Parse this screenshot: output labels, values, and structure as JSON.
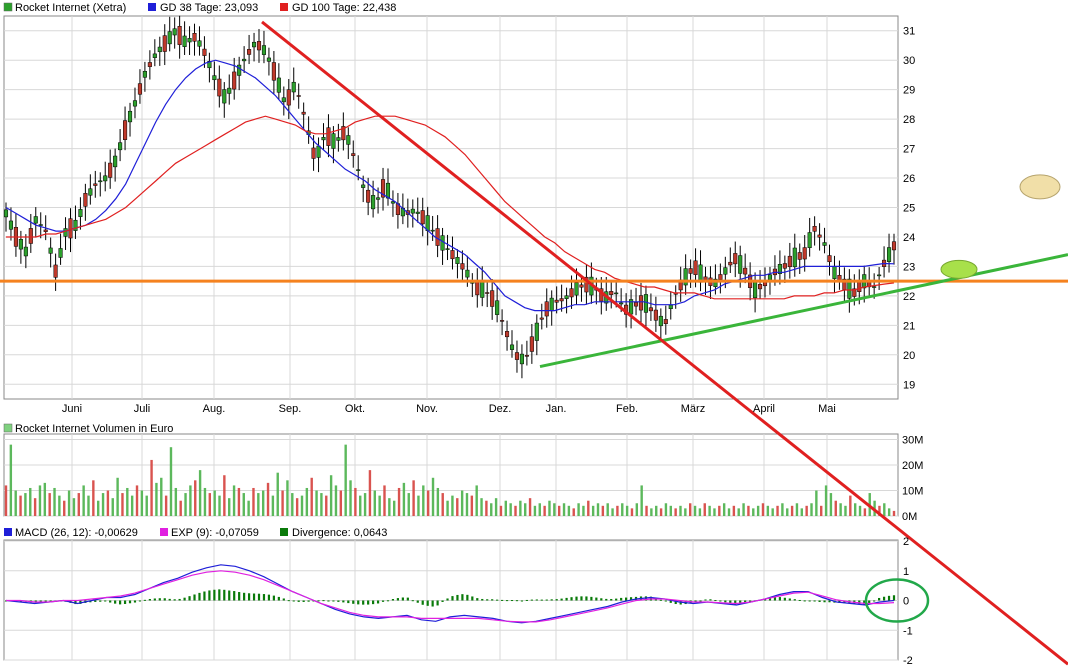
{
  "legend": {
    "price": {
      "label": "Rocket Internet (Xetra)",
      "color": "#2ca02c"
    },
    "gd38": {
      "label": "GD 38 Tage: 23,093",
      "color": "#1f1fd8"
    },
    "gd100": {
      "label": "GD 100 Tage: 22,438",
      "color": "#e02020"
    },
    "volume": {
      "label": "Rocket Internet Volumen in Euro",
      "color": "#7fd17f"
    },
    "macd": {
      "label": "MACD (26, 12): -0,00629",
      "color": "#1f1fd8"
    },
    "exp": {
      "label": "EXP (9): -0,07059",
      "color": "#e020e0"
    },
    "divergence": {
      "label": "Divergence: 0,0643",
      "color": "#0a7a0a"
    }
  },
  "chart_data": [
    {
      "type": "line",
      "title": "Rocket Internet (Xetra)",
      "x_ticks": [
        "Juni",
        "Juli",
        "Aug.",
        "Sep.",
        "Okt.",
        "Nov.",
        "Dez.",
        "Jan.",
        "Feb.",
        "März",
        "April",
        "Mai"
      ],
      "y_ticks": [
        "19",
        "20",
        "21",
        "22",
        "23",
        "24",
        "25",
        "26",
        "27",
        "28",
        "29",
        "30",
        "31"
      ],
      "ylim": [
        18.5,
        31.5
      ],
      "price_series": {
        "name": "Rocket Internet (Xetra)",
        "x": [
          0,
          10,
          20,
          30,
          40,
          50,
          60,
          70,
          80,
          90,
          100,
          110,
          120,
          130,
          140,
          150,
          160,
          170,
          180,
          190,
          200,
          210,
          220,
          230,
          240,
          250,
          260,
          270,
          280,
          290,
          300,
          310,
          320,
          330,
          340,
          350,
          360,
          370,
          380,
          390,
          400,
          410,
          420,
          430,
          440,
          450,
          460,
          470,
          480,
          490,
          500,
          510,
          520,
          530,
          540,
          550,
          560,
          570,
          580,
          590,
          600,
          610,
          620,
          630,
          640,
          650,
          660,
          670,
          680,
          690,
          700,
          710,
          720,
          730,
          740,
          750,
          760,
          770,
          780,
          790,
          800,
          810,
          820,
          830,
          840,
          850,
          860,
          870,
          880,
          890
        ],
        "values": [
          24.8,
          24.0,
          23.5,
          24.6,
          24.2,
          22.8,
          24.2,
          24.4,
          25.3,
          25.8,
          26.0,
          26.6,
          27.7,
          28.6,
          29.6,
          30.2,
          30.6,
          31.0,
          30.6,
          30.8,
          30.2,
          29.3,
          28.7,
          29.4,
          30.1,
          30.6,
          30.3,
          29.5,
          28.5,
          29.2,
          28.0,
          26.6,
          27.5,
          27.2,
          27.6,
          26.6,
          25.5,
          25.1,
          25.8,
          25.0,
          24.8,
          24.9,
          24.6,
          24.1,
          23.7,
          23.3,
          22.9,
          22.3,
          22.2,
          21.8,
          20.9,
          20.0,
          19.8,
          20.6,
          21.5,
          21.8,
          21.9,
          22.2,
          22.4,
          22.3,
          21.9,
          22.2,
          21.5,
          21.7,
          21.8,
          21.4,
          21.0,
          22.0,
          22.6,
          23.0,
          22.6,
          22.4,
          22.8,
          23.3,
          22.9,
          22.2,
          22.4,
          22.8,
          23.0,
          23.3,
          23.4,
          24.3,
          23.8,
          22.8,
          22.4,
          22.1,
          22.5,
          22.3,
          23.1,
          23.7
        ]
      },
      "gd38_values": [
        25.0,
        24.8,
        24.6,
        24.4,
        24.3,
        24.2,
        24.2,
        24.3,
        24.4,
        24.6,
        24.9,
        25.3,
        25.8,
        26.5,
        27.2,
        27.9,
        28.5,
        29.0,
        29.4,
        29.7,
        29.9,
        30.0,
        29.9,
        29.8,
        29.6,
        29.4,
        29.1,
        28.8,
        28.4,
        28.0,
        27.6,
        27.2,
        26.9,
        26.6,
        26.3,
        26.1,
        25.9,
        25.6,
        25.4,
        25.2,
        24.9,
        24.6,
        24.3,
        24.0,
        23.8,
        23.6,
        23.4,
        23.1,
        22.8,
        22.4,
        22.0,
        21.8,
        21.6,
        21.5,
        21.5,
        21.5,
        21.6,
        21.7,
        21.7,
        21.8,
        21.8,
        21.8,
        21.8,
        21.8,
        21.8,
        21.7,
        21.7,
        21.7,
        21.8,
        22.0,
        22.1,
        22.2,
        22.4,
        22.5,
        22.6,
        22.7,
        22.7,
        22.8,
        22.8,
        22.9,
        23.0,
        23.0,
        23.0,
        23.0,
        23.0,
        23.0,
        23.0,
        23.05,
        23.1,
        23.09
      ],
      "gd100_values": [
        24.0,
        24.0,
        24.0,
        24.0,
        24.1,
        24.1,
        24.2,
        24.3,
        24.4,
        24.5,
        24.6,
        24.8,
        25.0,
        25.3,
        25.6,
        25.9,
        26.2,
        26.5,
        26.7,
        26.9,
        27.1,
        27.3,
        27.5,
        27.7,
        27.9,
        28.0,
        28.1,
        28.0,
        27.9,
        27.8,
        27.6,
        27.5,
        27.5,
        27.6,
        27.7,
        27.9,
        28.0,
        28.1,
        28.1,
        28.1,
        28.0,
        27.9,
        27.8,
        27.6,
        27.4,
        27.1,
        26.8,
        26.4,
        26.0,
        25.6,
        25.2,
        24.9,
        24.6,
        24.3,
        24.0,
        23.8,
        23.5,
        23.3,
        23.1,
        22.9,
        22.8,
        22.6,
        22.5,
        22.4,
        22.3,
        22.3,
        22.2,
        22.1,
        22.1,
        22.1,
        22.0,
        21.9,
        21.9,
        21.9,
        21.9,
        21.9,
        21.9,
        21.9,
        21.9,
        22.0,
        22.0,
        22.0,
        22.1,
        22.1,
        22.2,
        22.2,
        22.3,
        22.35,
        22.4,
        22.44
      ],
      "annotations": {
        "support_level": 22.5,
        "downtrend_line": {
          "from": [
            262,
            31.3
          ],
          "to": [
            1068,
            9.5
          ],
          "color": "#e02020"
        },
        "uptrend_line": {
          "from": [
            540,
            19.6
          ],
          "to": [
            1068,
            23.4
          ],
          "color": "#3ab53a"
        },
        "horizontal_line_color": "#f5821f",
        "ellipse_yellow_level": 25.7,
        "ellipse_green_level": 22.9
      },
      "grid": true
    },
    {
      "type": "bar",
      "title": "Rocket Internet Volumen in Euro",
      "y_ticks": [
        "0M",
        "10M",
        "20M",
        "30M"
      ],
      "ylim": [
        0,
        31
      ],
      "values": [
        12,
        28,
        10,
        8,
        9,
        11,
        7,
        12,
        13,
        9,
        11,
        8,
        6,
        10,
        7,
        9,
        12,
        8,
        14,
        6,
        9,
        10,
        7,
        15,
        9,
        11,
        8,
        12,
        10,
        8,
        22,
        13,
        15,
        8,
        27,
        11,
        6,
        9,
        12,
        14,
        18,
        11,
        9,
        10,
        8,
        16,
        7,
        12,
        11,
        9,
        6,
        11,
        9,
        10,
        13,
        8,
        17,
        10,
        14,
        9,
        7,
        8,
        11,
        15,
        10,
        9,
        8,
        16,
        12,
        10,
        28,
        14,
        11,
        8,
        9,
        18,
        10,
        8,
        12,
        7,
        6,
        11,
        13,
        9,
        14,
        8,
        12,
        10,
        15,
        11,
        9,
        6,
        8,
        7,
        10,
        9,
        8,
        12,
        7,
        6,
        5,
        7,
        4,
        6,
        5,
        4,
        6,
        5,
        7,
        4,
        5,
        4,
        6,
        5,
        4,
        5,
        4,
        3,
        5,
        4,
        6,
        4,
        5,
        4,
        5,
        3,
        4,
        5,
        4,
        3,
        5,
        12,
        4,
        3,
        4,
        3,
        5,
        4,
        3,
        4,
        3,
        5,
        4,
        3,
        5,
        4,
        3,
        4,
        5,
        3,
        4,
        3,
        5,
        4,
        3,
        4,
        5,
        4,
        3,
        4,
        5,
        3,
        4,
        5,
        3,
        4,
        5,
        10,
        4,
        12,
        9,
        6,
        5,
        4,
        8,
        5,
        4,
        3,
        9,
        6,
        4,
        5,
        3,
        2
      ]
    },
    {
      "type": "line",
      "title": "MACD (26, 12)",
      "y_ticks": [
        "2",
        "1",
        "0",
        "-1",
        "-2"
      ],
      "ylim": [
        -2,
        2
      ],
      "macd_values": [
        0.0,
        -0.05,
        -0.1,
        -0.05,
        0.0,
        -0.1,
        0.0,
        0.1,
        0.1,
        0.2,
        0.4,
        0.6,
        0.75,
        0.95,
        1.1,
        1.2,
        1.15,
        1.0,
        0.8,
        0.55,
        0.3,
        0.1,
        -0.1,
        -0.3,
        -0.45,
        -0.55,
        -0.6,
        -0.55,
        -0.5,
        -0.65,
        -0.7,
        -0.55,
        -0.5,
        -0.55,
        -0.6,
        -0.7,
        -0.75,
        -0.7,
        -0.6,
        -0.5,
        -0.4,
        -0.3,
        -0.2,
        -0.05,
        0.05,
        0.1,
        0.05,
        -0.05,
        -0.1,
        -0.05,
        -0.1,
        -0.15,
        -0.05,
        0.05,
        0.2,
        0.3,
        0.3,
        0.1,
        -0.05,
        -0.1,
        -0.15,
        -0.05,
        0.0
      ],
      "exp_values": [
        0.0,
        0.0,
        -0.05,
        -0.05,
        0.0,
        0.0,
        0.05,
        0.1,
        0.15,
        0.25,
        0.4,
        0.55,
        0.7,
        0.85,
        0.95,
        1.0,
        0.95,
        0.85,
        0.7,
        0.5,
        0.3,
        0.1,
        -0.1,
        -0.25,
        -0.4,
        -0.5,
        -0.55,
        -0.55,
        -0.55,
        -0.6,
        -0.6,
        -0.6,
        -0.6,
        -0.6,
        -0.65,
        -0.7,
        -0.72,
        -0.72,
        -0.65,
        -0.55,
        -0.45,
        -0.35,
        -0.25,
        -0.12,
        0.0,
        0.05,
        0.05,
        0.0,
        -0.05,
        -0.05,
        -0.08,
        -0.1,
        -0.05,
        0.05,
        0.15,
        0.25,
        0.28,
        0.15,
        0.02,
        -0.05,
        -0.1,
        -0.1,
        -0.07
      ]
    }
  ]
}
